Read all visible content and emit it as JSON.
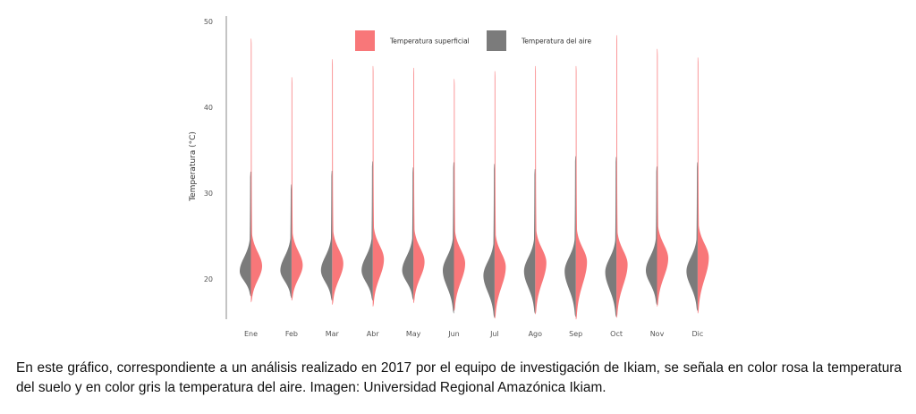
{
  "chart_data": {
    "type": "violin",
    "ylabel": "Temperatura (°C)",
    "ylim": [
      15,
      51
    ],
    "yticks": [
      20,
      30,
      40,
      50
    ],
    "categories": [
      "Ene",
      "Feb",
      "Mar",
      "Abr",
      "May",
      "Jun",
      "Jul",
      "Ago",
      "Sep",
      "Oct",
      "Nov",
      "Dic"
    ],
    "legend_position": "top",
    "series": [
      {
        "name": "Temperatura superficial",
        "color": "#f87779",
        "side": "right",
        "min": [
          17.3,
          17.5,
          17.0,
          16.8,
          17.2,
          16.3,
          15.4,
          15.9,
          15.3,
          15.5,
          16.8,
          16.0
        ],
        "mode": [
          21.5,
          21.6,
          21.8,
          22.3,
          22.0,
          21.8,
          21.4,
          21.9,
          22.0,
          21.7,
          22.4,
          22.5
        ],
        "max": [
          48.0,
          43.5,
          45.6,
          44.8,
          44.6,
          43.3,
          44.2,
          44.8,
          44.8,
          48.4,
          46.8,
          45.8
        ]
      },
      {
        "name": "Temperatura del aire",
        "color": "#7b7b7b",
        "side": "left",
        "min": [
          18.0,
          17.8,
          17.5,
          17.5,
          17.6,
          16.0,
          15.5,
          16.0,
          15.6,
          15.6,
          17.0,
          16.3
        ],
        "mode": [
          20.9,
          21.0,
          21.0,
          21.0,
          21.0,
          21.0,
          20.4,
          20.9,
          20.9,
          20.8,
          21.0,
          20.9
        ],
        "max": [
          32.5,
          31.0,
          32.6,
          33.7,
          33.0,
          33.6,
          33.4,
          32.8,
          34.3,
          34.2,
          33.1,
          33.6
        ]
      }
    ]
  },
  "caption": "En este gráfico, correspondiente a un análisis realizado en 2017 por el equipo de investigación de Ikiam, se señala en color rosa la temperatura del suelo y en color gris la temperatura del aire. Imagen: Universidad Regional Amazónica Ikiam."
}
